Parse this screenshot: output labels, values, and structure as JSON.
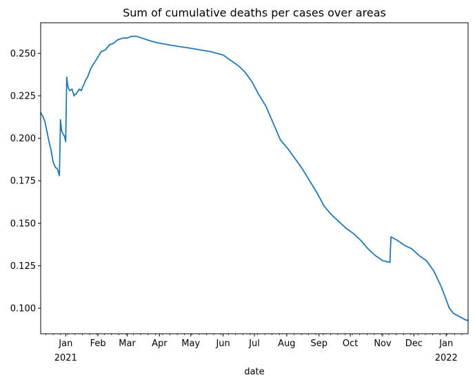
{
  "chart_data": {
    "type": "line",
    "title": "Sum of cumulative deaths per cases over areas",
    "xlabel": "date",
    "ylabel": "",
    "x_range": [
      "2020-12-08",
      "2022-01-22"
    ],
    "ylim": [
      0.085,
      0.268
    ],
    "y_ticks": [
      0.1,
      0.125,
      0.15,
      0.175,
      0.2,
      0.225,
      0.25
    ],
    "y_tick_labels": [
      "0.100",
      "0.125",
      "0.150",
      "0.175",
      "0.200",
      "0.225",
      "0.250"
    ],
    "x_ticks": [
      {
        "date": "2021-01-01",
        "label": "Jan",
        "sublabel": "2021"
      },
      {
        "date": "2021-02-01",
        "label": "Feb",
        "sublabel": ""
      },
      {
        "date": "2021-03-01",
        "label": "Mar",
        "sublabel": ""
      },
      {
        "date": "2021-04-01",
        "label": "Apr",
        "sublabel": ""
      },
      {
        "date": "2021-05-01",
        "label": "May",
        "sublabel": ""
      },
      {
        "date": "2021-06-01",
        "label": "Jun",
        "sublabel": ""
      },
      {
        "date": "2021-07-01",
        "label": "Jul",
        "sublabel": ""
      },
      {
        "date": "2021-08-01",
        "label": "Aug",
        "sublabel": ""
      },
      {
        "date": "2021-09-01",
        "label": "Sep",
        "sublabel": ""
      },
      {
        "date": "2021-10-01",
        "label": "Oct",
        "sublabel": ""
      },
      {
        "date": "2021-11-01",
        "label": "Nov",
        "sublabel": ""
      },
      {
        "date": "2021-12-01",
        "label": "Dec",
        "sublabel": ""
      },
      {
        "date": "2022-01-01",
        "label": "Jan",
        "sublabel": "2022"
      }
    ],
    "grid": false,
    "legend": "none",
    "line_color": "#1f77b4",
    "series": [
      {
        "x": [
          "2020-12-08",
          "2020-12-10",
          "2020-12-12",
          "2020-12-14",
          "2020-12-16",
          "2020-12-18",
          "2020-12-20",
          "2020-12-22",
          "2020-12-24",
          "2020-12-26",
          "2020-12-27",
          "2020-12-28",
          "2020-12-29",
          "2020-12-31",
          "2021-01-01",
          "2021-01-02",
          "2021-01-03",
          "2021-01-04",
          "2021-01-05",
          "2021-01-07",
          "2021-01-09",
          "2021-01-10",
          "2021-01-11",
          "2021-01-12",
          "2021-01-14",
          "2021-01-16",
          "2021-01-17",
          "2021-01-18",
          "2021-01-20",
          "2021-01-22",
          "2021-01-25",
          "2021-01-28",
          "2021-01-31",
          "2021-02-04",
          "2021-02-08",
          "2021-02-12",
          "2021-02-16",
          "2021-02-20",
          "2021-02-25",
          "2021-03-01",
          "2021-03-05",
          "2021-03-10",
          "2021-03-15",
          "2021-03-20",
          "2021-03-25",
          "2021-04-01",
          "2021-04-10",
          "2021-04-20",
          "2021-05-01",
          "2021-05-10",
          "2021-05-20",
          "2021-06-01",
          "2021-06-08",
          "2021-06-15",
          "2021-06-22",
          "2021-06-29",
          "2021-07-05",
          "2021-07-12",
          "2021-07-19",
          "2021-07-26",
          "2021-08-02",
          "2021-08-09",
          "2021-08-16",
          "2021-08-23",
          "2021-08-30",
          "2021-09-06",
          "2021-09-13",
          "2021-09-20",
          "2021-09-27",
          "2021-10-04",
          "2021-10-11",
          "2021-10-18",
          "2021-10-25",
          "2021-11-01",
          "2021-11-08",
          "2021-11-09",
          "2021-11-15",
          "2021-11-22",
          "2021-11-29",
          "2021-12-06",
          "2021-12-13",
          "2021-12-20",
          "2021-12-27",
          "2022-01-01",
          "2022-01-04",
          "2022-01-08",
          "2022-01-14",
          "2022-01-20",
          "2022-01-22"
        ],
        "y": [
          0.215,
          0.213,
          0.21,
          0.204,
          0.198,
          0.193,
          0.186,
          0.183,
          0.182,
          0.178,
          0.211,
          0.205,
          0.203,
          0.201,
          0.198,
          0.236,
          0.231,
          0.229,
          0.228,
          0.229,
          0.225,
          0.226,
          0.226,
          0.227,
          0.229,
          0.228,
          0.23,
          0.231,
          0.234,
          0.236,
          0.241,
          0.244,
          0.247,
          0.251,
          0.252,
          0.255,
          0.256,
          0.258,
          0.259,
          0.259,
          0.26,
          0.26,
          0.259,
          0.258,
          0.257,
          0.256,
          0.255,
          0.254,
          0.253,
          0.252,
          0.251,
          0.249,
          0.246,
          0.243,
          0.239,
          0.233,
          0.226,
          0.219,
          0.209,
          0.199,
          0.194,
          0.188,
          0.182,
          0.175,
          0.168,
          0.16,
          0.155,
          0.151,
          0.147,
          0.144,
          0.14,
          0.135,
          0.131,
          0.128,
          0.127,
          0.142,
          0.14,
          0.137,
          0.135,
          0.131,
          0.128,
          0.122,
          0.113,
          0.105,
          0.1,
          0.097,
          0.095,
          0.093,
          0.093
        ]
      }
    ]
  }
}
